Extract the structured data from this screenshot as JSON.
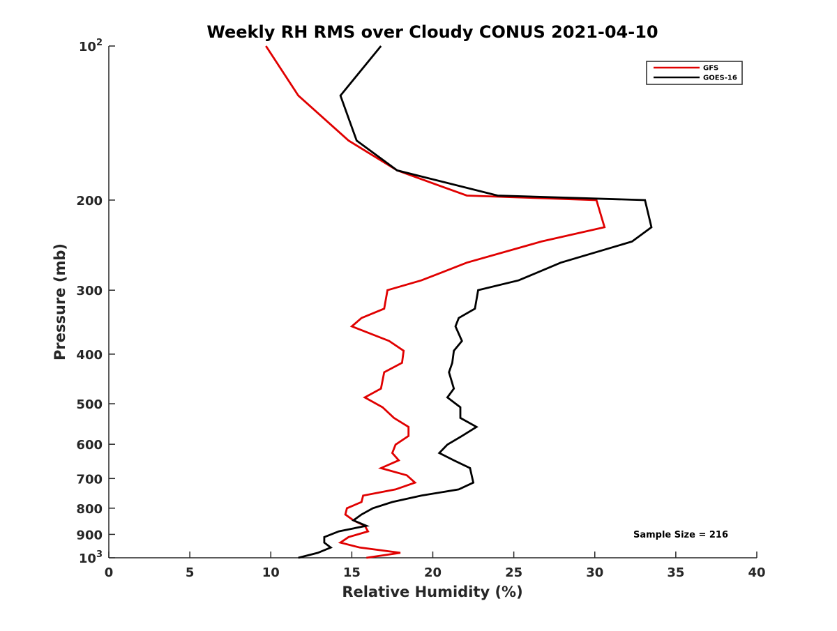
{
  "chart_data": {
    "type": "line",
    "title": "Weekly RH RMS over Cloudy CONUS 2021-04-10",
    "xlabel": "Relative Humidity (%)",
    "ylabel": "Pressure (mb)",
    "xlim": [
      0,
      40
    ],
    "ylim": [
      100,
      1000
    ],
    "yscale": "log",
    "y_reversed": true,
    "grid": false,
    "legend_position": "top-right",
    "x_ticks": [
      0,
      5,
      10,
      15,
      20,
      25,
      30,
      35,
      40
    ],
    "x_tick_labels": [
      "0",
      "5",
      "10",
      "15",
      "20",
      "25",
      "30",
      "35",
      "40"
    ],
    "y_ticks": [
      100,
      200,
      300,
      400,
      500,
      600,
      700,
      800,
      900,
      1000
    ],
    "y_tick_labels": [
      {
        "base": "10",
        "exp": "2"
      },
      {
        "base": "200",
        "exp": ""
      },
      {
        "base": "300",
        "exp": ""
      },
      {
        "base": "400",
        "exp": ""
      },
      {
        "base": "500",
        "exp": ""
      },
      {
        "base": "600",
        "exp": ""
      },
      {
        "base": "700",
        "exp": ""
      },
      {
        "base": "800",
        "exp": ""
      },
      {
        "base": "900",
        "exp": ""
      },
      {
        "base": "10",
        "exp": "3"
      }
    ],
    "annotation": "Sample Size = 216",
    "series": [
      {
        "name": "GFS",
        "color": "#e00000",
        "points": [
          [
            9.7,
            100
          ],
          [
            11.7,
            125
          ],
          [
            14.8,
            153
          ],
          [
            17.8,
            175
          ],
          [
            22.1,
            196
          ],
          [
            30.1,
            200
          ],
          [
            30.6,
            226
          ],
          [
            26.7,
            241
          ],
          [
            22.1,
            265
          ],
          [
            19.3,
            287
          ],
          [
            17.2,
            300
          ],
          [
            17.0,
            326
          ],
          [
            15.6,
            340
          ],
          [
            15.0,
            353
          ],
          [
            17.3,
            377
          ],
          [
            18.2,
            394
          ],
          [
            18.1,
            416
          ],
          [
            17.0,
            434
          ],
          [
            16.8,
            467
          ],
          [
            15.8,
            486
          ],
          [
            16.9,
            508
          ],
          [
            17.6,
            533
          ],
          [
            18.5,
            555
          ],
          [
            18.5,
            578
          ],
          [
            17.7,
            601
          ],
          [
            17.5,
            624
          ],
          [
            17.9,
            645
          ],
          [
            16.8,
            668
          ],
          [
            18.4,
            690
          ],
          [
            18.9,
            713
          ],
          [
            17.7,
            735
          ],
          [
            15.7,
            756
          ],
          [
            15.6,
            778
          ],
          [
            14.7,
            800
          ],
          [
            14.6,
            823
          ],
          [
            15.1,
            845
          ],
          [
            15.8,
            866
          ],
          [
            16.0,
            888
          ],
          [
            14.8,
            911
          ],
          [
            14.3,
            934
          ],
          [
            15.5,
            955
          ],
          [
            18.0,
            978
          ],
          [
            15.9,
            1000
          ]
        ]
      },
      {
        "name": "GOES-16",
        "color": "#000000",
        "points": [
          [
            16.8,
            100
          ],
          [
            14.3,
            125
          ],
          [
            15.3,
            153
          ],
          [
            17.8,
            175
          ],
          [
            24.0,
            196
          ],
          [
            33.1,
            200
          ],
          [
            33.5,
            226
          ],
          [
            32.3,
            241
          ],
          [
            27.9,
            265
          ],
          [
            25.3,
            287
          ],
          [
            22.8,
            300
          ],
          [
            22.6,
            326
          ],
          [
            21.6,
            340
          ],
          [
            21.4,
            353
          ],
          [
            21.8,
            377
          ],
          [
            21.3,
            394
          ],
          [
            21.2,
            416
          ],
          [
            21.0,
            434
          ],
          [
            21.3,
            467
          ],
          [
            20.9,
            486
          ],
          [
            21.7,
            508
          ],
          [
            21.7,
            533
          ],
          [
            22.7,
            555
          ],
          [
            21.8,
            578
          ],
          [
            20.9,
            601
          ],
          [
            20.4,
            624
          ],
          [
            21.3,
            645
          ],
          [
            22.3,
            668
          ],
          [
            22.4,
            690
          ],
          [
            22.5,
            713
          ],
          [
            21.6,
            735
          ],
          [
            19.3,
            756
          ],
          [
            17.5,
            778
          ],
          [
            16.3,
            800
          ],
          [
            15.6,
            823
          ],
          [
            15.1,
            845
          ],
          [
            15.9,
            866
          ],
          [
            14.2,
            888
          ],
          [
            13.3,
            911
          ],
          [
            13.3,
            934
          ],
          [
            13.7,
            955
          ],
          [
            12.9,
            978
          ],
          [
            11.7,
            1000
          ]
        ]
      }
    ]
  }
}
